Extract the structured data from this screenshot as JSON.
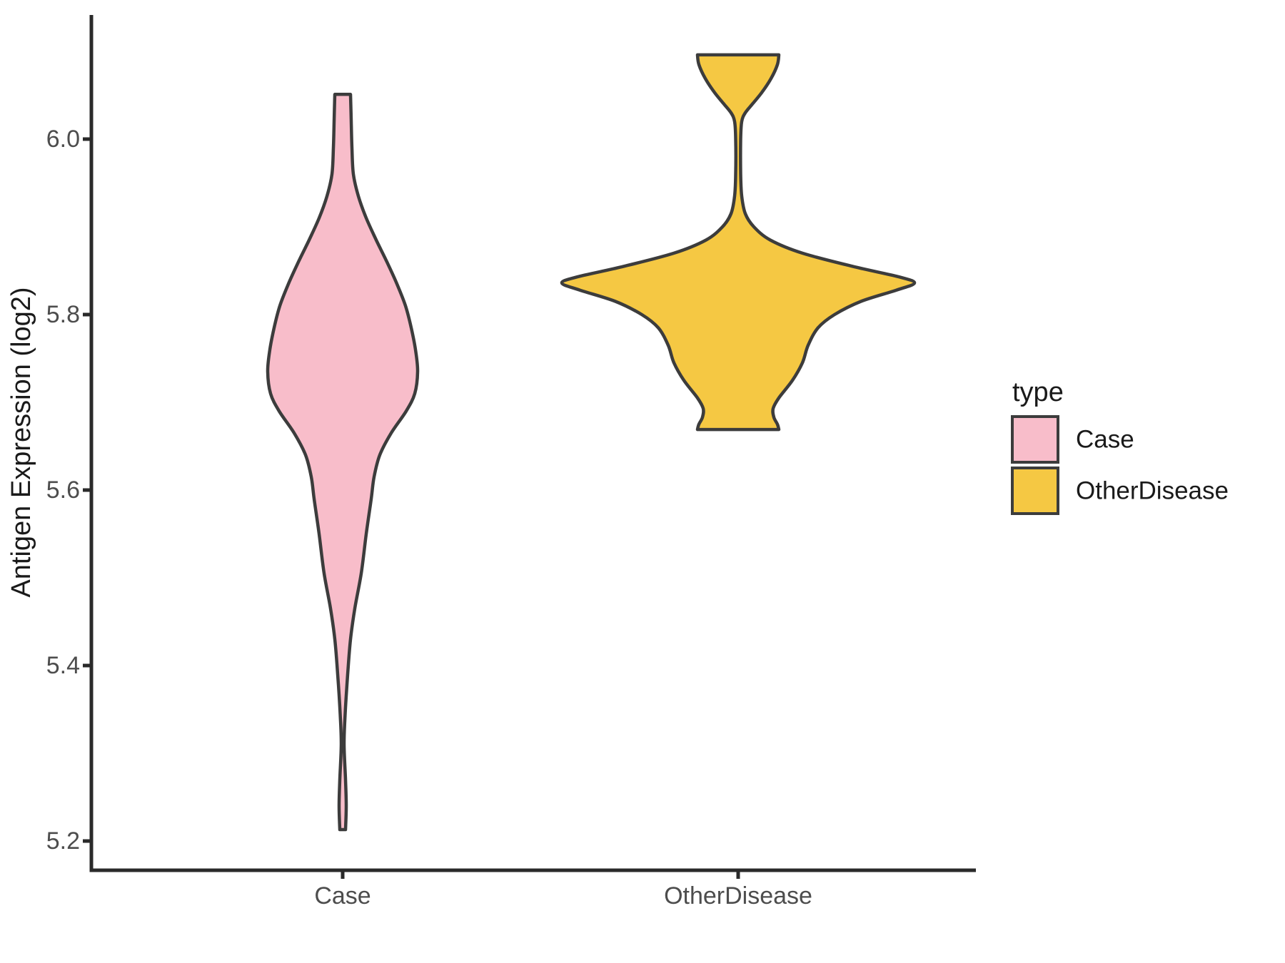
{
  "chart_data": {
    "type": "violin",
    "title": "",
    "xlabel": "",
    "ylabel": "Antigen Expression (log2)",
    "categories": [
      "Case",
      "OtherDisease"
    ],
    "y_axis": {
      "tick_values": [
        5.2,
        5.4,
        5.6,
        5.8,
        6.0
      ],
      "tick_labels": [
        "5.2",
        "5.4",
        "5.6",
        "5.8",
        "6.0"
      ],
      "range": [
        5.17,
        6.14
      ],
      "grid": false
    },
    "legend": {
      "title": "type",
      "position": "right",
      "entries": [
        {
          "label": "Case",
          "color": "#F8BDCA"
        },
        {
          "label": "OtherDisease",
          "color": "#F5C843"
        }
      ]
    },
    "series": [
      {
        "name": "Case",
        "fill": "#F8BDCA",
        "outline": "#3C3C3C",
        "y_min": 5.21,
        "y_max": 6.05,
        "density_profile": [
          [
            6.051,
            11
          ],
          [
            6.02,
            12
          ],
          [
            5.99,
            13
          ],
          [
            5.96,
            15
          ],
          [
            5.935,
            22
          ],
          [
            5.91,
            33
          ],
          [
            5.885,
            47
          ],
          [
            5.86,
            62
          ],
          [
            5.835,
            76
          ],
          [
            5.81,
            88
          ],
          [
            5.785,
            96
          ],
          [
            5.76,
            102
          ],
          [
            5.735,
            105
          ],
          [
            5.71,
            101
          ],
          [
            5.69,
            89
          ],
          [
            5.665,
            68
          ],
          [
            5.64,
            52
          ],
          [
            5.615,
            44
          ],
          [
            5.59,
            40
          ],
          [
            5.55,
            33
          ],
          [
            5.505,
            26
          ],
          [
            5.465,
            17
          ],
          [
            5.43,
            11
          ],
          [
            5.39,
            7
          ],
          [
            5.345,
            3.5
          ],
          [
            5.31,
            2
          ],
          [
            5.27,
            4
          ],
          [
            5.24,
            5
          ],
          [
            5.213,
            4
          ]
        ]
      },
      {
        "name": "OtherDisease",
        "fill": "#F5C843",
        "outline": "#3C3C3C",
        "y_min": 5.67,
        "y_max": 6.1,
        "density_profile": [
          [
            6.096,
            57
          ],
          [
            6.085,
            55
          ],
          [
            6.069,
            46
          ],
          [
            6.053,
            33
          ],
          [
            6.041,
            21
          ],
          [
            6.03,
            10
          ],
          [
            6.02,
            5
          ],
          [
            6.0,
            3.5
          ],
          [
            5.96,
            3.5
          ],
          [
            5.935,
            5
          ],
          [
            5.915,
            10
          ],
          [
            5.9,
            22
          ],
          [
            5.885,
            45
          ],
          [
            5.87,
            90
          ],
          [
            5.855,
            160
          ],
          [
            5.843,
            225
          ],
          [
            5.836,
            247
          ],
          [
            5.828,
            222
          ],
          [
            5.815,
            172
          ],
          [
            5.8,
            135
          ],
          [
            5.785,
            112
          ],
          [
            5.765,
            98
          ],
          [
            5.745,
            90
          ],
          [
            5.725,
            76
          ],
          [
            5.705,
            57
          ],
          [
            5.693,
            49
          ],
          [
            5.683,
            50
          ],
          [
            5.675,
            55
          ],
          [
            5.669,
            57
          ]
        ]
      }
    ]
  },
  "style": {
    "background": "#FFFFFF",
    "axis_line_color": "#2A2A2A",
    "tick_label_color": "#4D4D4D",
    "axis_title_color": "#1A1A1A",
    "legend_text_color": "#1A1A1A",
    "violin_outline_color": "#3C3C3C"
  }
}
